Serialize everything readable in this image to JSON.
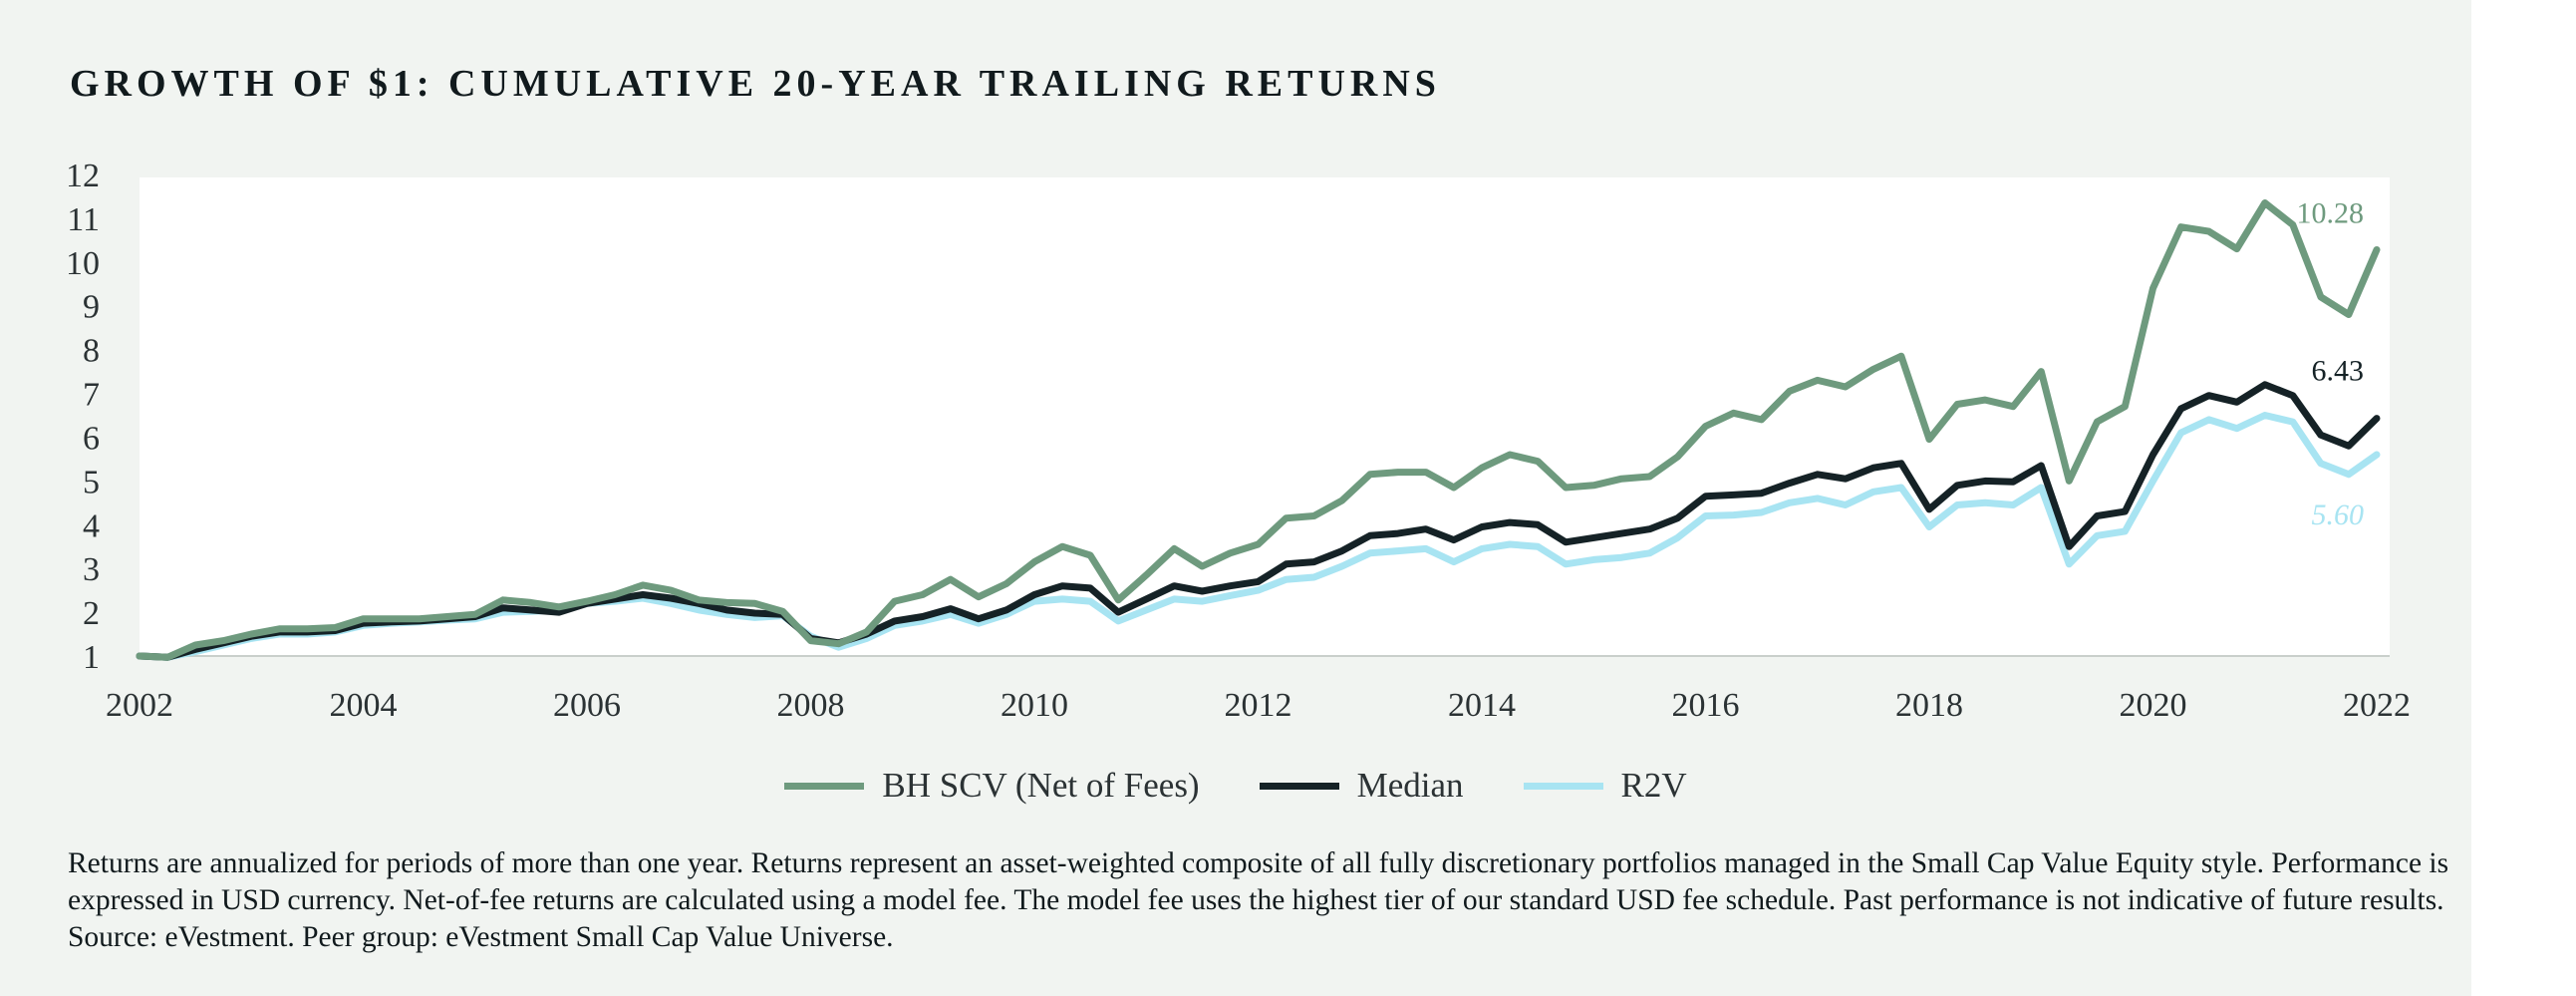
{
  "title": "GROWTH OF $1: CUMULATIVE 20-YEAR TRAILING RETURNS",
  "legend": [
    {
      "label": "BH SCV (Net of Fees)",
      "color": "#6e9a7e"
    },
    {
      "label": "Median",
      "color": "#152226"
    },
    {
      "label": "R2V",
      "color": "#a8e4f2"
    }
  ],
  "footnote": "Returns are annualized for periods of more than one year. Returns represent an asset-weighted composite of all fully discretionary portfolios managed in the Small Cap Value Equity style. Performance is expressed in USD currency. Net-of-fee returns are calculated using a model fee. The model fee uses the highest tier of our standard USD fee schedule. Past performance is not indicative of future results. Source: eVestment. Peer group: eVestment Small Cap Value Universe.",
  "chart_data": {
    "type": "line",
    "title": "GROWTH OF $1: CUMULATIVE 20-YEAR TRAILING RETURNS",
    "xlabel": "",
    "ylabel": "",
    "xlim": [
      2002,
      2022
    ],
    "ylim": [
      1,
      12
    ],
    "x_ticks": [
      "2002",
      "2004",
      "2006",
      "2008",
      "2010",
      "2012",
      "2014",
      "2016",
      "2018",
      "2020",
      "2022"
    ],
    "y_ticks": [
      "1",
      "2",
      "3",
      "4",
      "5",
      "6",
      "7",
      "8",
      "9",
      "10",
      "11",
      "12"
    ],
    "grid": false,
    "legend_position": "bottom",
    "end_labels": [
      {
        "series": "BH SCV (Net of Fees)",
        "text": "10.28",
        "color": "#6e9a7e"
      },
      {
        "series": "Median",
        "text": "6.43",
        "color": "#152226"
      },
      {
        "series": "R2V",
        "text": "5.60",
        "color": "#a8e4f2"
      }
    ],
    "x": [
      2002.0,
      2002.25,
      2002.5,
      2002.75,
      2003.0,
      2003.25,
      2003.5,
      2003.75,
      2004.0,
      2004.25,
      2004.5,
      2004.75,
      2005.0,
      2005.25,
      2005.5,
      2005.75,
      2006.0,
      2006.25,
      2006.5,
      2006.75,
      2007.0,
      2007.25,
      2007.5,
      2007.75,
      2008.0,
      2008.25,
      2008.5,
      2008.75,
      2009.0,
      2009.25,
      2009.5,
      2009.75,
      2010.0,
      2010.25,
      2010.5,
      2010.75,
      2011.0,
      2011.25,
      2011.5,
      2011.75,
      2012.0,
      2012.25,
      2012.5,
      2012.75,
      2013.0,
      2013.25,
      2013.5,
      2013.75,
      2014.0,
      2014.25,
      2014.5,
      2014.75,
      2015.0,
      2015.25,
      2015.5,
      2015.75,
      2016.0,
      2016.25,
      2016.5,
      2016.75,
      2017.0,
      2017.25,
      2017.5,
      2017.75,
      2018.0,
      2018.25,
      2018.5,
      2018.75,
      2019.0,
      2019.25,
      2019.5,
      2019.75,
      2020.0,
      2020.25,
      2020.5,
      2020.75,
      2021.0,
      2021.25,
      2021.5,
      2021.75,
      2022.0
    ],
    "series": [
      {
        "name": "BH SCV (Net of Fees)",
        "color": "#6e9a7e",
        "values": [
          1.0,
          0.97,
          1.25,
          1.35,
          1.5,
          1.62,
          1.62,
          1.65,
          1.85,
          1.85,
          1.85,
          1.9,
          1.95,
          2.28,
          2.22,
          2.12,
          2.25,
          2.4,
          2.62,
          2.5,
          2.28,
          2.22,
          2.2,
          2.02,
          1.35,
          1.28,
          1.55,
          2.25,
          2.4,
          2.75,
          2.35,
          2.65,
          3.15,
          3.5,
          3.3,
          2.28,
          2.85,
          3.45,
          3.05,
          3.35,
          3.55,
          4.15,
          4.2,
          4.55,
          5.15,
          5.2,
          5.2,
          4.85,
          5.3,
          5.6,
          5.45,
          4.85,
          4.9,
          5.05,
          5.1,
          5.55,
          6.25,
          6.55,
          6.4,
          7.05,
          7.3,
          7.15,
          7.55,
          7.85,
          5.95,
          6.75,
          6.85,
          6.7,
          7.5,
          5.0,
          6.35,
          6.7,
          9.4,
          10.8,
          10.7,
          10.3,
          11.35,
          10.85,
          9.2,
          8.8,
          10.28
        ]
      },
      {
        "name": "Median",
        "color": "#152226",
        "values": [
          1.0,
          0.97,
          1.15,
          1.3,
          1.45,
          1.55,
          1.55,
          1.58,
          1.75,
          1.78,
          1.8,
          1.85,
          1.9,
          2.1,
          2.05,
          2.0,
          2.2,
          2.3,
          2.4,
          2.32,
          2.2,
          2.05,
          1.98,
          1.95,
          1.4,
          1.3,
          1.5,
          1.8,
          1.9,
          2.08,
          1.85,
          2.05,
          2.4,
          2.6,
          2.55,
          2.0,
          2.3,
          2.6,
          2.48,
          2.6,
          2.7,
          3.1,
          3.15,
          3.4,
          3.75,
          3.8,
          3.9,
          3.65,
          3.95,
          4.05,
          4.0,
          3.6,
          3.7,
          3.8,
          3.9,
          4.15,
          4.65,
          4.68,
          4.72,
          4.95,
          5.15,
          5.05,
          5.3,
          5.4,
          4.35,
          4.9,
          5.0,
          4.98,
          5.35,
          3.5,
          4.2,
          4.3,
          5.6,
          6.65,
          6.95,
          6.8,
          7.2,
          6.95,
          6.05,
          5.8,
          6.43
        ]
      },
      {
        "name": "R2V",
        "color": "#a8e4f2",
        "values": [
          1.0,
          0.97,
          1.1,
          1.25,
          1.4,
          1.5,
          1.5,
          1.55,
          1.7,
          1.75,
          1.78,
          1.82,
          1.85,
          2.0,
          2.02,
          2.05,
          2.2,
          2.25,
          2.32,
          2.2,
          2.05,
          1.95,
          1.88,
          1.92,
          1.45,
          1.2,
          1.4,
          1.7,
          1.8,
          1.95,
          1.75,
          1.95,
          2.25,
          2.3,
          2.25,
          1.8,
          2.05,
          2.3,
          2.25,
          2.38,
          2.5,
          2.75,
          2.8,
          3.05,
          3.35,
          3.4,
          3.45,
          3.15,
          3.45,
          3.55,
          3.5,
          3.1,
          3.2,
          3.25,
          3.35,
          3.7,
          4.2,
          4.22,
          4.28,
          4.5,
          4.6,
          4.45,
          4.75,
          4.85,
          3.95,
          4.45,
          4.5,
          4.45,
          4.85,
          3.1,
          3.75,
          3.85,
          5.0,
          6.1,
          6.4,
          6.2,
          6.5,
          6.35,
          5.4,
          5.15,
          5.6
        ]
      }
    ]
  }
}
